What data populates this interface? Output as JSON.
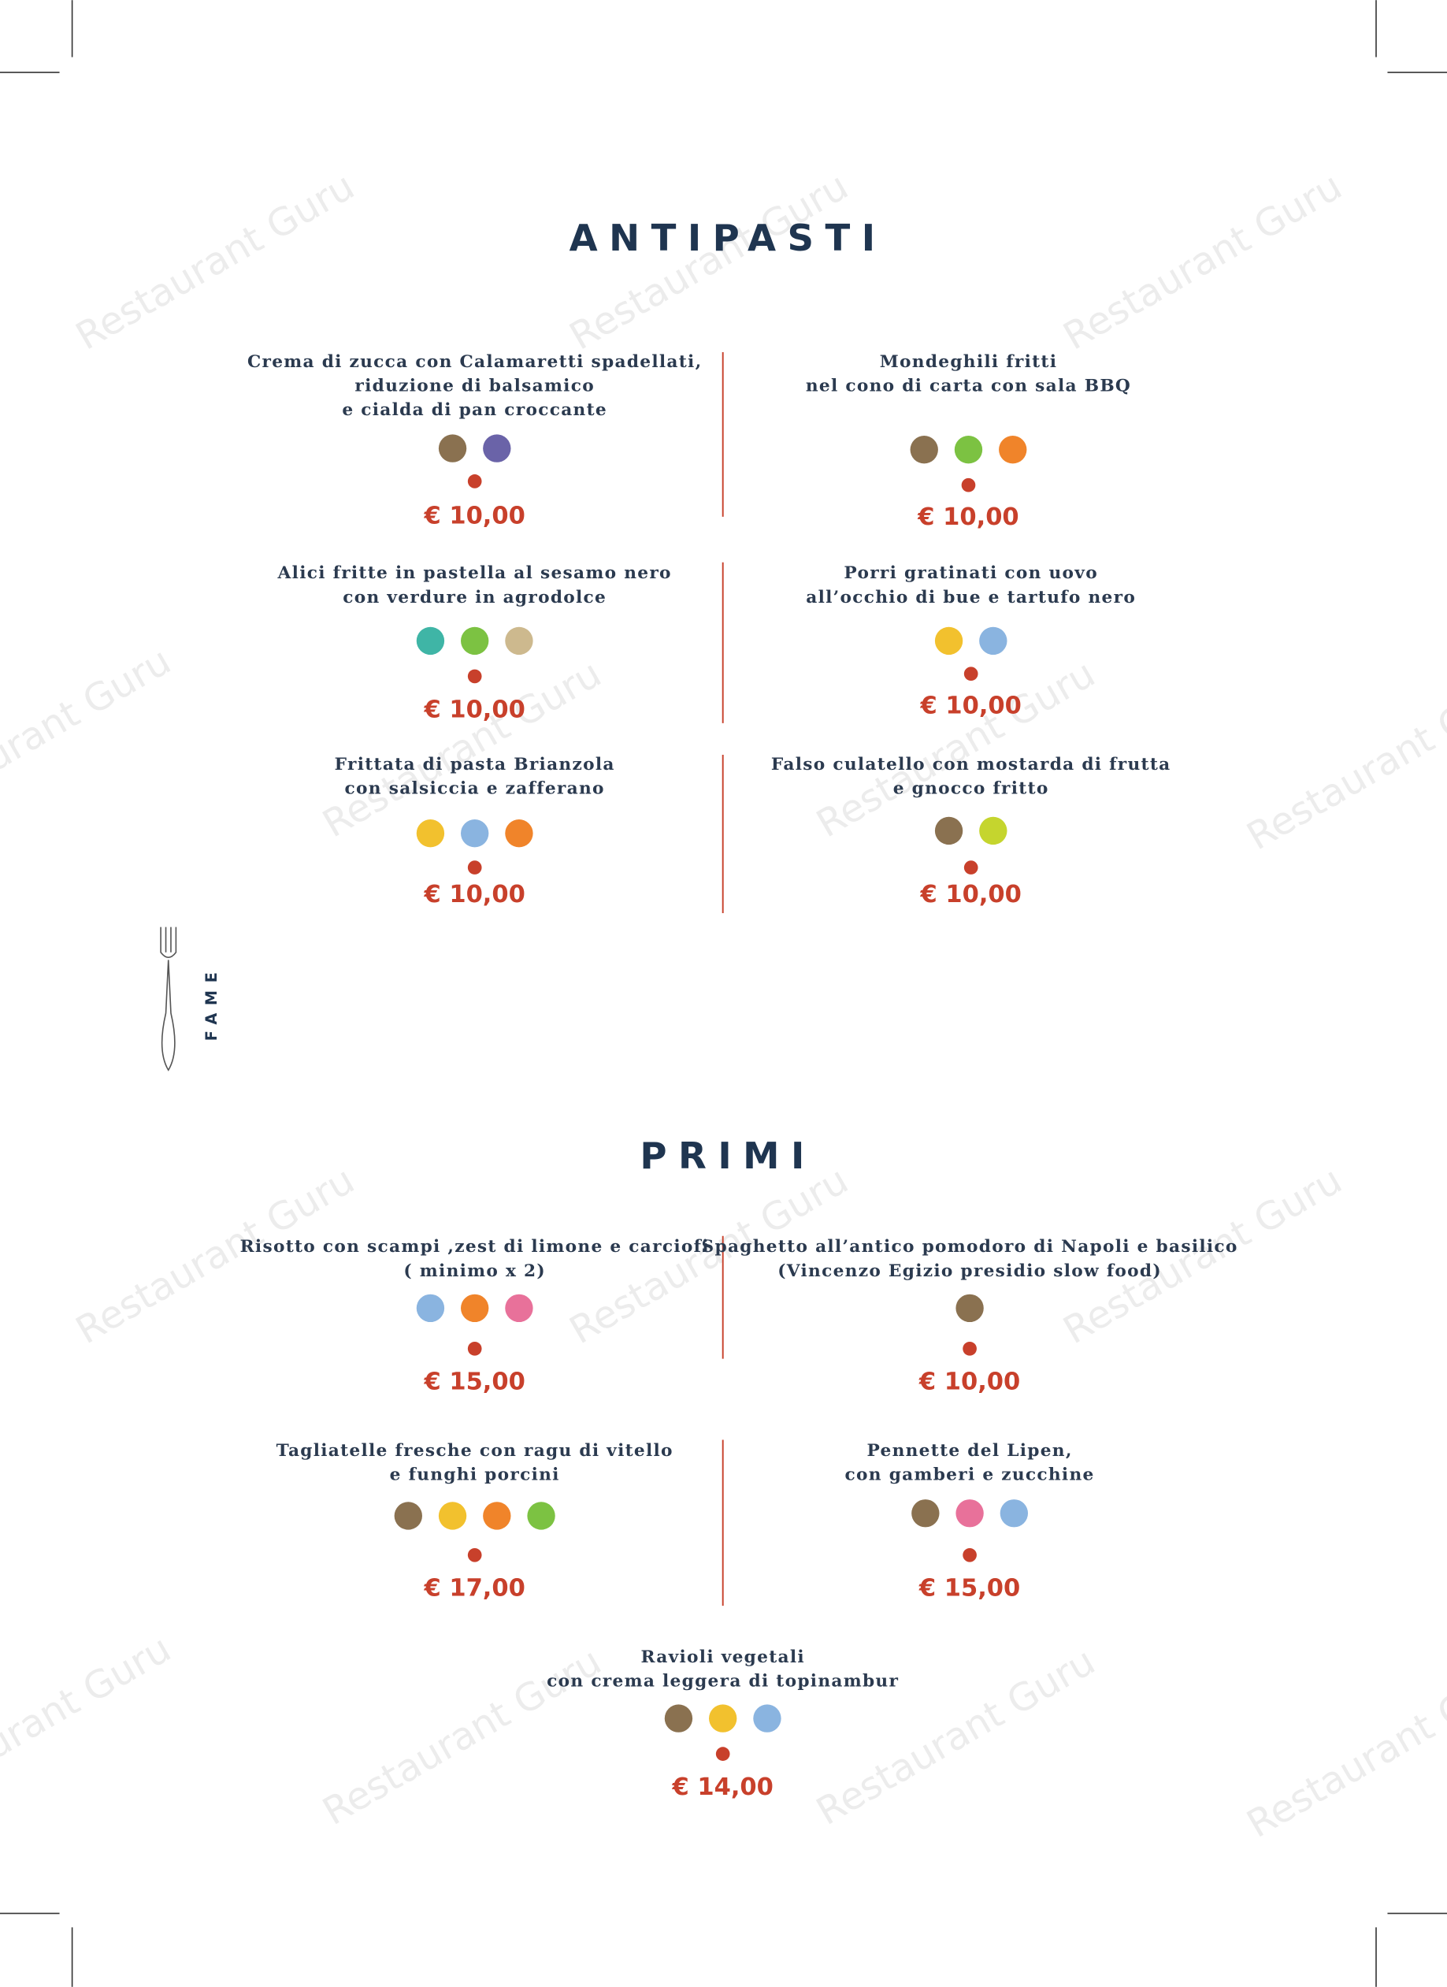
{
  "sections": [
    {
      "title": "ANTIPASTI",
      "items": [
        {
          "name": [
            "Crema di zucca con Calamaretti spadellati,",
            "riduzione di balsamico",
            "e cialda di pan croccante"
          ],
          "price": "€ 10,00"
        },
        {
          "name": [
            "Mondeghili fritti",
            "nel cono di carta con sala BBQ"
          ],
          "price": "€ 10,00"
        },
        {
          "name": [
            "Alici fritte in pastella al sesamo nero",
            "con verdure in agrodolce"
          ],
          "price": "€ 10,00"
        },
        {
          "name": [
            "Porri gratinati con uovo",
            "all’occhio di bue e tartufo nero"
          ],
          "price": "€ 10,00"
        },
        {
          "name": [
            "Frittata di pasta Brianzola",
            "con salsiccia e zafferano"
          ],
          "price": "€ 10,00"
        },
        {
          "name": [
            "Falso culatello con mostarda di frutta",
            "e gnocco fritto"
          ],
          "price": "€ 10,00"
        }
      ]
    },
    {
      "title": "PRIMI",
      "items": [
        {
          "name": [
            "Risotto con scampi ,zest di limone e carciofi",
            "( minimo x 2)"
          ],
          "price": "€ 15,00"
        },
        {
          "name": [
            "Spaghetto all’antico pomodoro di Napoli  e basilico",
            "(Vincenzo Egizio presidio slow food)"
          ],
          "price": "€ 10,00"
        },
        {
          "name": [
            "Tagliatelle fresche con ragu di vitello",
            "e funghi porcini"
          ],
          "price": "€ 17,00"
        },
        {
          "name": [
            "Pennette del Lipen,",
            "con gamberi e zucchine"
          ],
          "price": "€ 15,00"
        },
        {
          "name": [
            "Ravioli vegetali",
            "con crema leggera  di topinambur"
          ],
          "price": "€ 14,00"
        }
      ]
    }
  ],
  "side_label": "FAME",
  "watermark": "Restaurant Guru"
}
